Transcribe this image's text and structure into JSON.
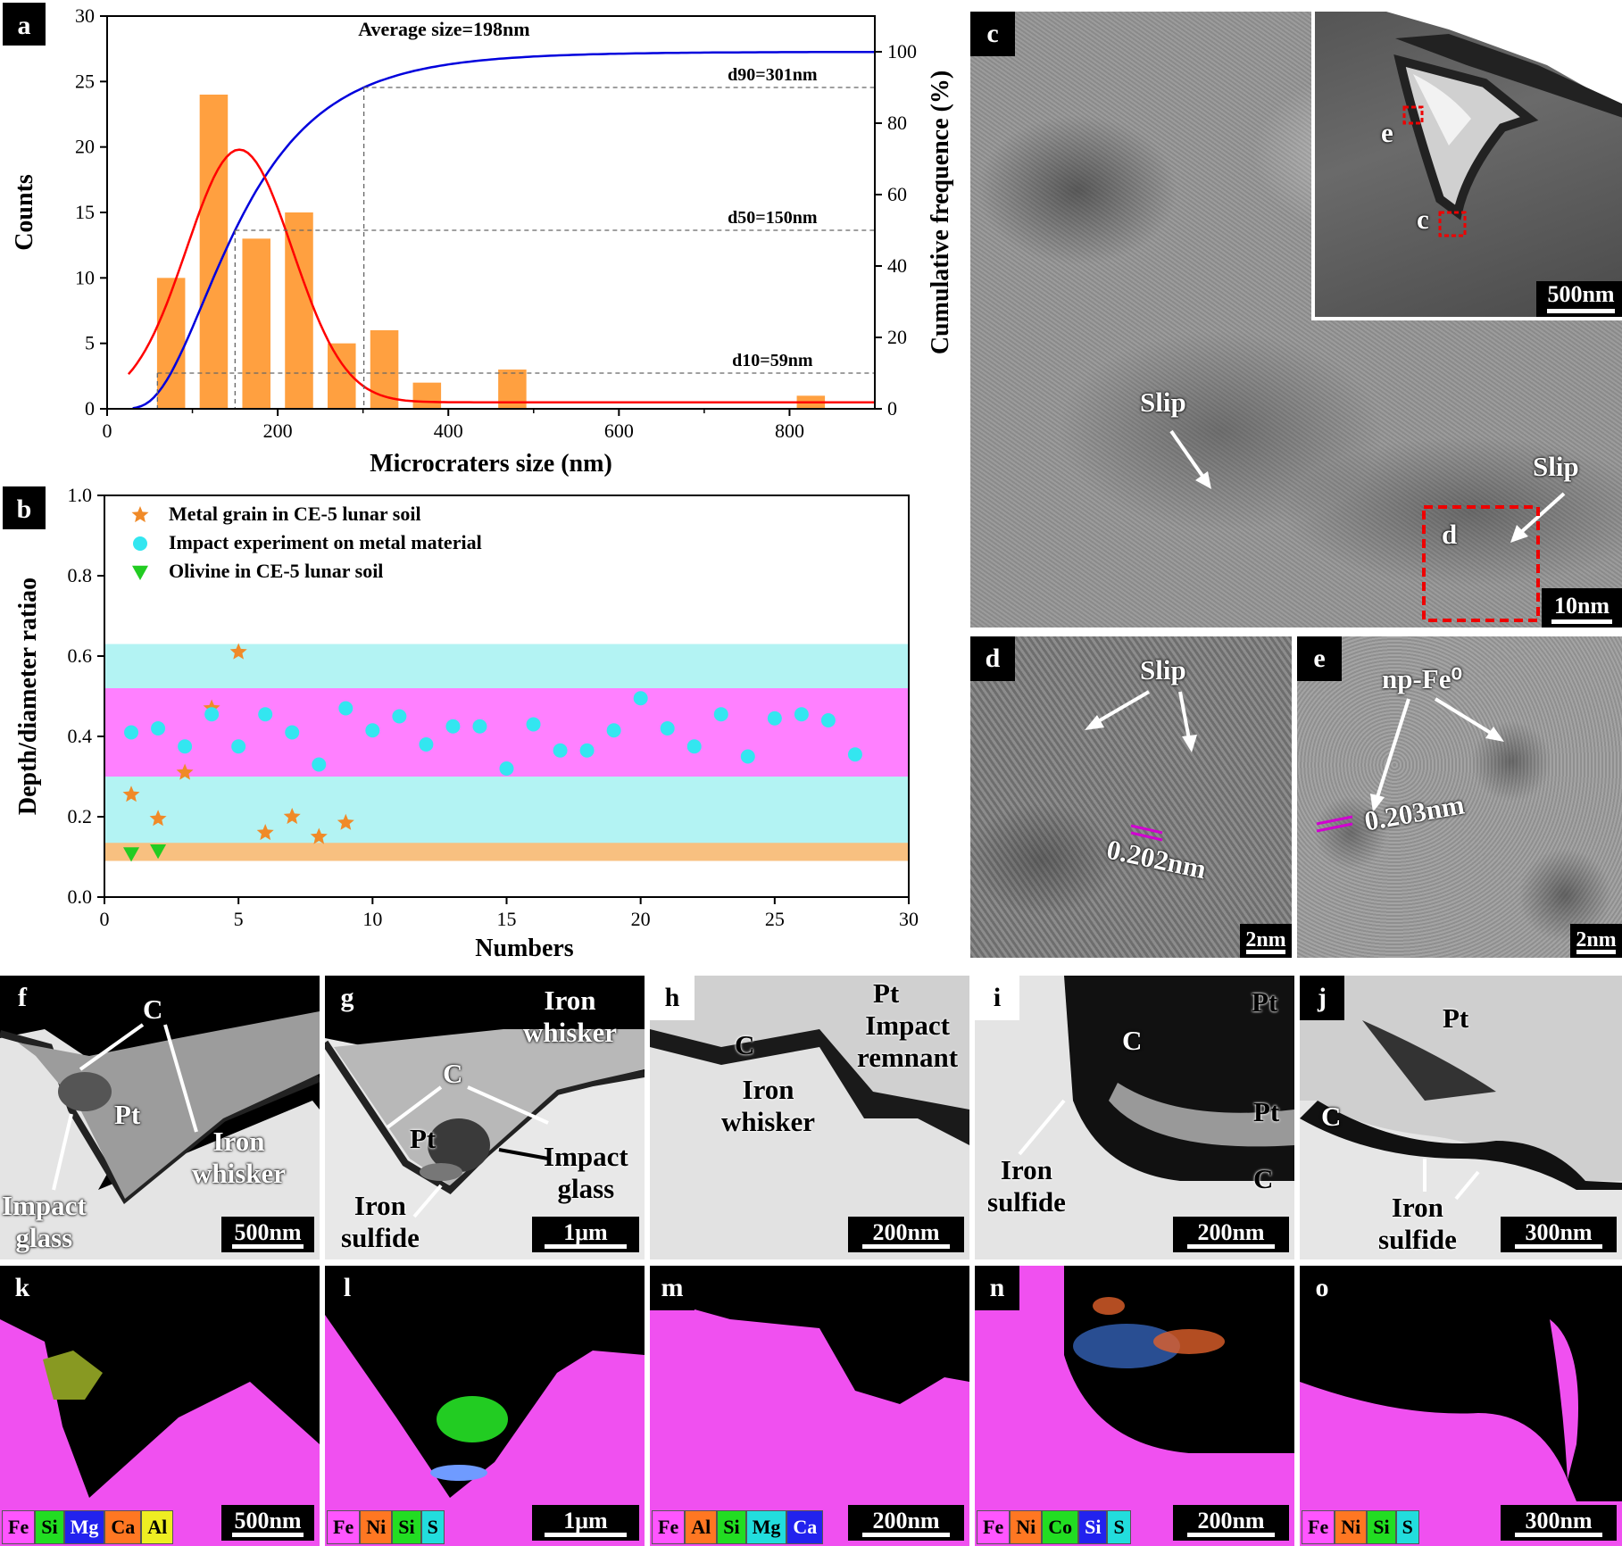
{
  "panels": {
    "a": "a",
    "b": "b",
    "c": "c",
    "d": "d",
    "e": "e",
    "f": "f",
    "g": "g",
    "h": "h",
    "i": "i",
    "j": "j",
    "k": "k",
    "l": "l",
    "m": "m",
    "n": "n",
    "o": "o"
  },
  "chart_data": [
    {
      "panel": "a",
      "type": "bar",
      "title": "Average size=198nm",
      "xlabel": "Microcraters size (nm)",
      "ylabel": "Counts",
      "y2label": "Cumulative frequence (%)",
      "xlim": [
        0,
        900
      ],
      "ylim": [
        0,
        30
      ],
      "y2lim": [
        0,
        110
      ],
      "xticks": [
        0,
        200,
        400,
        600,
        800
      ],
      "yticks": [
        0,
        5,
        10,
        15,
        20,
        25,
        30
      ],
      "y2ticks": [
        0,
        20,
        40,
        60,
        80,
        100
      ],
      "bars": [
        {
          "x": 75,
          "count": 10
        },
        {
          "x": 125,
          "count": 24
        },
        {
          "x": 175,
          "count": 13
        },
        {
          "x": 225,
          "count": 15
        },
        {
          "x": 275,
          "count": 5
        },
        {
          "x": 325,
          "count": 6
        },
        {
          "x": 375,
          "count": 2
        },
        {
          "x": 475,
          "count": 3
        },
        {
          "x": 825,
          "count": 1
        }
      ],
      "annotations": [
        {
          "text": "d90=301nm",
          "x": 301,
          "cum": 90
        },
        {
          "text": "d50=150nm",
          "x": 150,
          "cum": 50
        },
        {
          "text": "d10=59nm",
          "x": 59,
          "cum": 10
        }
      ],
      "colors": {
        "bar": "#ffa040",
        "normal_fit": "#ff0000",
        "cumulative": "#0000dd"
      }
    },
    {
      "panel": "b",
      "type": "scatter",
      "xlabel": "Numbers",
      "ylabel": "Depth/diameter ratiao",
      "xlim": [
        0,
        30
      ],
      "ylim": [
        0,
        1.0
      ],
      "xticks": [
        0,
        5,
        10,
        15,
        20,
        25,
        30
      ],
      "yticks": [
        "0.0",
        "0.2",
        "0.4",
        "0.6",
        "0.8",
        "1.0"
      ],
      "bands": [
        {
          "from": 0.1,
          "to": 0.63,
          "color": "#b3f3f3"
        },
        {
          "from": 0.3,
          "to": 0.52,
          "color": "#ff80ff"
        },
        {
          "from": 0.09,
          "to": 0.135,
          "color": "#f8c080"
        }
      ],
      "series": [
        {
          "name": "Metal grain in CE-5 lunar soil",
          "marker": "star",
          "color": "#f08a28",
          "points": [
            [
              1,
              0.255
            ],
            [
              2,
              0.195
            ],
            [
              3,
              0.31
            ],
            [
              4,
              0.47
            ],
            [
              5,
              0.61
            ],
            [
              6,
              0.16
            ],
            [
              7,
              0.2
            ],
            [
              8,
              0.15
            ],
            [
              9,
              0.185
            ]
          ]
        },
        {
          "name": "Impact experiment on metal material",
          "marker": "circle",
          "color": "#33e6f0",
          "points": [
            [
              1,
              0.41
            ],
            [
              2,
              0.42
            ],
            [
              3,
              0.375
            ],
            [
              4,
              0.455
            ],
            [
              5,
              0.375
            ],
            [
              6,
              0.455
            ],
            [
              7,
              0.41
            ],
            [
              8,
              0.33
            ],
            [
              9,
              0.47
            ],
            [
              10,
              0.415
            ],
            [
              11,
              0.45
            ],
            [
              12,
              0.38
            ],
            [
              13,
              0.425
            ],
            [
              14,
              0.425
            ],
            [
              15,
              0.32
            ],
            [
              16,
              0.43
            ],
            [
              17,
              0.365
            ],
            [
              18,
              0.365
            ],
            [
              19,
              0.415
            ],
            [
              20,
              0.495
            ],
            [
              21,
              0.42
            ],
            [
              22,
              0.375
            ],
            [
              23,
              0.455
            ],
            [
              24,
              0.35
            ],
            [
              25,
              0.445
            ],
            [
              26,
              0.455
            ],
            [
              27,
              0.44
            ],
            [
              28,
              0.355
            ]
          ]
        },
        {
          "name": "Olivine in CE-5 lunar soil",
          "marker": "triangle-down",
          "color": "#22cc22",
          "points": [
            [
              1,
              0.108
            ],
            [
              2,
              0.115
            ]
          ]
        }
      ]
    }
  ],
  "tem": {
    "c": {
      "labels": [
        "Slip",
        "Slip",
        "d"
      ],
      "inset_labels": [
        "e",
        "c"
      ],
      "inset_scale": "500nm",
      "scale": "10nm"
    },
    "d": {
      "labels": [
        "Slip",
        "0.202nm"
      ],
      "scale": "2nm"
    },
    "e": {
      "labels": [
        "np-Fe⁰",
        "0.203nm"
      ],
      "scale": "2nm"
    },
    "f": {
      "labels": [
        "C",
        "Pt",
        "Iron\nwhisker",
        "Impact\nglass"
      ],
      "scale": "500nm"
    },
    "g": {
      "labels": [
        "Iron\nwhisker",
        "C",
        "Pt",
        "Impact\nglass",
        "Iron\nsulfide"
      ],
      "scale": "1μm"
    },
    "h": {
      "labels": [
        "Pt",
        "Impact\nremnant",
        "C",
        "Iron\nwhisker"
      ],
      "scale": "200nm"
    },
    "i": {
      "labels": [
        "Pt",
        "C",
        "Pt",
        "C",
        "Iron\nsulfide"
      ],
      "scale": "200nm"
    },
    "j": {
      "labels": [
        "Pt",
        "C",
        "Iron\nsulfide"
      ],
      "scale": "300nm"
    }
  },
  "eds": {
    "k": {
      "elements": [
        {
          "el": "Fe",
          "color": "#ff55ff"
        },
        {
          "el": "Si",
          "color": "#22dd22"
        },
        {
          "el": "Mg",
          "color": "#2222ee"
        },
        {
          "el": "Ca",
          "color": "#ff7722"
        },
        {
          "el": "Al",
          "color": "#eeee22"
        }
      ],
      "scale": "500nm"
    },
    "l": {
      "elements": [
        {
          "el": "Fe",
          "color": "#ff55ff"
        },
        {
          "el": "Ni",
          "color": "#ff7722"
        },
        {
          "el": "Si",
          "color": "#22dd22"
        },
        {
          "el": "S",
          "color": "#22dddd"
        }
      ],
      "scale": "1μm"
    },
    "m": {
      "elements": [
        {
          "el": "Fe",
          "color": "#ff55ff"
        },
        {
          "el": "Al",
          "color": "#ff7722"
        },
        {
          "el": "Si",
          "color": "#22dd22"
        },
        {
          "el": "Mg",
          "color": "#22dddd"
        },
        {
          "el": "Ca",
          "color": "#2222ee"
        }
      ],
      "scale": "200nm"
    },
    "n": {
      "elements": [
        {
          "el": "Fe",
          "color": "#ff55ff"
        },
        {
          "el": "Ni",
          "color": "#ff7722"
        },
        {
          "el": "Co",
          "color": "#22dd22"
        },
        {
          "el": "Si",
          "color": "#2222ee"
        },
        {
          "el": "S",
          "color": "#22dddd"
        }
      ],
      "scale": "200nm"
    },
    "o": {
      "elements": [
        {
          "el": "Fe",
          "color": "#ff55ff"
        },
        {
          "el": "Ni",
          "color": "#ff7722"
        },
        {
          "el": "Si",
          "color": "#22dd22"
        },
        {
          "el": "S",
          "color": "#22dddd"
        }
      ],
      "scale": "300nm"
    }
  }
}
